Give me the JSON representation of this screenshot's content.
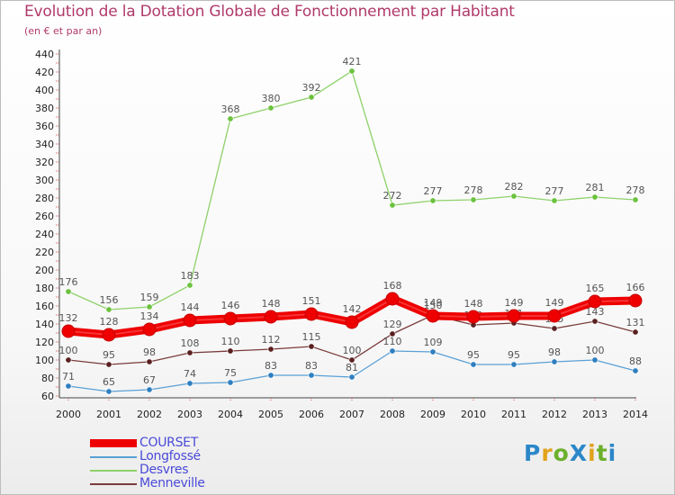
{
  "title": "Evolution de la Dotation Globale de Fonctionnement par Habitant",
  "subtitle": "(en € et par an)",
  "logo": {
    "text": "ProXiti",
    "colors": [
      "#2c87c8",
      "#e2a21c",
      "#6bb02c",
      "#2c87c8",
      "#e2a21c",
      "#6bb02c",
      "#2c87c8"
    ]
  },
  "chart_data": {
    "type": "line",
    "title": "Evolution de la Dotation Globale de Fonctionnement par Habitant",
    "subtitle": "(en € et par an)",
    "xlabel": "",
    "ylabel": "",
    "ylim": [
      60,
      440
    ],
    "ytick_step": 20,
    "grid": false,
    "legend_position": "bottom-left",
    "categories": [
      "2000",
      "2001",
      "2002",
      "2003",
      "2004",
      "2005",
      "2006",
      "2007",
      "2008",
      "2009",
      "2010",
      "2011",
      "2012",
      "2013",
      "2014"
    ],
    "series": [
      {
        "name": "Desvres",
        "color": "#8ed16a",
        "dot": "#6cc23e",
        "highlight": false,
        "values": [
          176,
          156,
          159,
          183,
          368,
          380,
          392,
          421,
          272,
          277,
          278,
          282,
          277,
          281,
          278
        ],
        "labels": [
          "176",
          "156",
          "159",
          "183",
          "368",
          "380",
          "392",
          "421",
          "272",
          "277",
          "278",
          "282",
          "277",
          "281",
          "278"
        ]
      },
      {
        "name": "Menneville",
        "color": "#7a3b3b",
        "dot": "#5a2020",
        "highlight": false,
        "values": [
          100,
          95,
          98,
          108,
          110,
          112,
          115,
          100,
          129,
          150,
          139,
          141,
          135,
          143,
          131
        ],
        "labels": [
          "100",
          "95",
          "98",
          "108",
          "110",
          "112",
          "115",
          "100",
          "129",
          "150",
          "139",
          "141",
          "135",
          "143",
          "131"
        ]
      },
      {
        "name": "Longfossé",
        "color": "#5aa0d6",
        "dot": "#2f7fc0",
        "highlight": false,
        "values": [
          71,
          65,
          67,
          74,
          75,
          83,
          83,
          81,
          110,
          109,
          95,
          95,
          98,
          100,
          88
        ],
        "labels": [
          "71",
          "65",
          "67",
          "74",
          "75",
          "83",
          "83",
          "81",
          "110",
          "109",
          "95",
          "95",
          "98",
          "100",
          "88"
        ]
      },
      {
        "name": "COURSET",
        "color": "#ee0000",
        "dot": "#ee0000",
        "highlight": true,
        "values": [
          132,
          128,
          134,
          144,
          146,
          148,
          151,
          142,
          168,
          149,
          148,
          149,
          149,
          165,
          166
        ],
        "labels": [
          "132",
          "128",
          "134",
          "144",
          "146",
          "148",
          "151",
          "142",
          "168",
          "149",
          "148",
          "149",
          "149",
          "165",
          "166"
        ]
      }
    ],
    "legend": [
      {
        "name": "COURSET",
        "color": "#ee0000",
        "width": 9
      },
      {
        "name": "Longfossé",
        "color": "#5aa0d6",
        "width": 2
      },
      {
        "name": "Desvres",
        "color": "#8ed16a",
        "width": 2
      },
      {
        "name": "Menneville",
        "color": "#7a3b3b",
        "width": 2
      }
    ]
  }
}
